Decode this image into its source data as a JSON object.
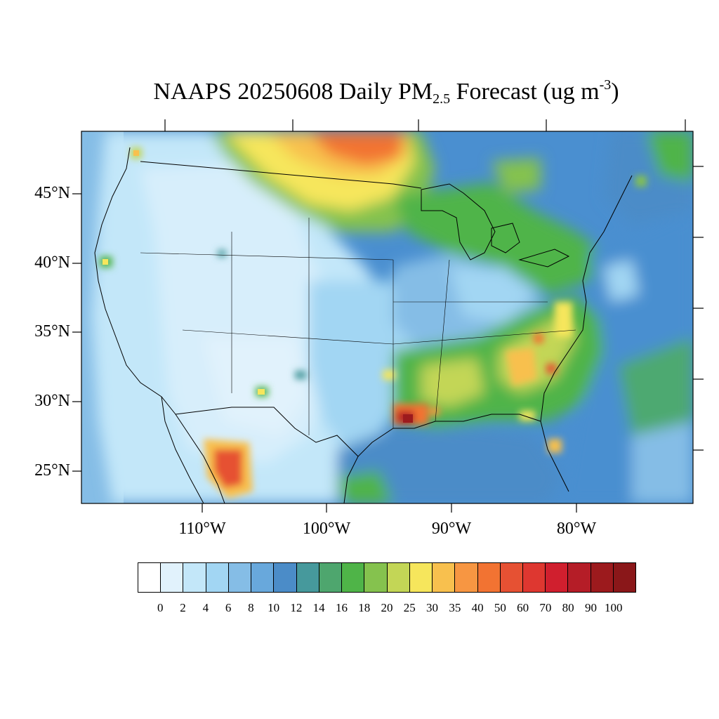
{
  "title": {
    "main": "NAAPS 20250608 Daily PM",
    "subscript": "2.5",
    "rest": " Forecast (ug m",
    "superscript": "-3",
    "close": ")"
  },
  "axes": {
    "lat_labels": [
      "45°N",
      "40°N",
      "35°N",
      "30°N",
      "25°N"
    ],
    "lon_labels": [
      "110°W",
      "100°W",
      "90°W",
      "80°W"
    ]
  },
  "colorbar": {
    "labels": [
      "0",
      "2",
      "4",
      "6",
      "8",
      "10",
      "12",
      "14",
      "16",
      "18",
      "20",
      "25",
      "30",
      "35",
      "40",
      "50",
      "60",
      "70",
      "80",
      "90",
      "100"
    ],
    "colors": [
      "#ffffff",
      "#e1f2fc",
      "#c3e7f9",
      "#a2d6f3",
      "#85bde6",
      "#68a8dc",
      "#4b8cc8",
      "#46999c",
      "#4ea66e",
      "#4fb448",
      "#85c24e",
      "#c3d656",
      "#f6e65c",
      "#f8c04e",
      "#f79642",
      "#f27332",
      "#e65133",
      "#de3730",
      "#d01f2e",
      "#b51d27",
      "#9c1a1d",
      "#8a1719"
    ]
  },
  "colors": {
    "background": "#3d85c6",
    "ocean": "#4a90d2"
  }
}
